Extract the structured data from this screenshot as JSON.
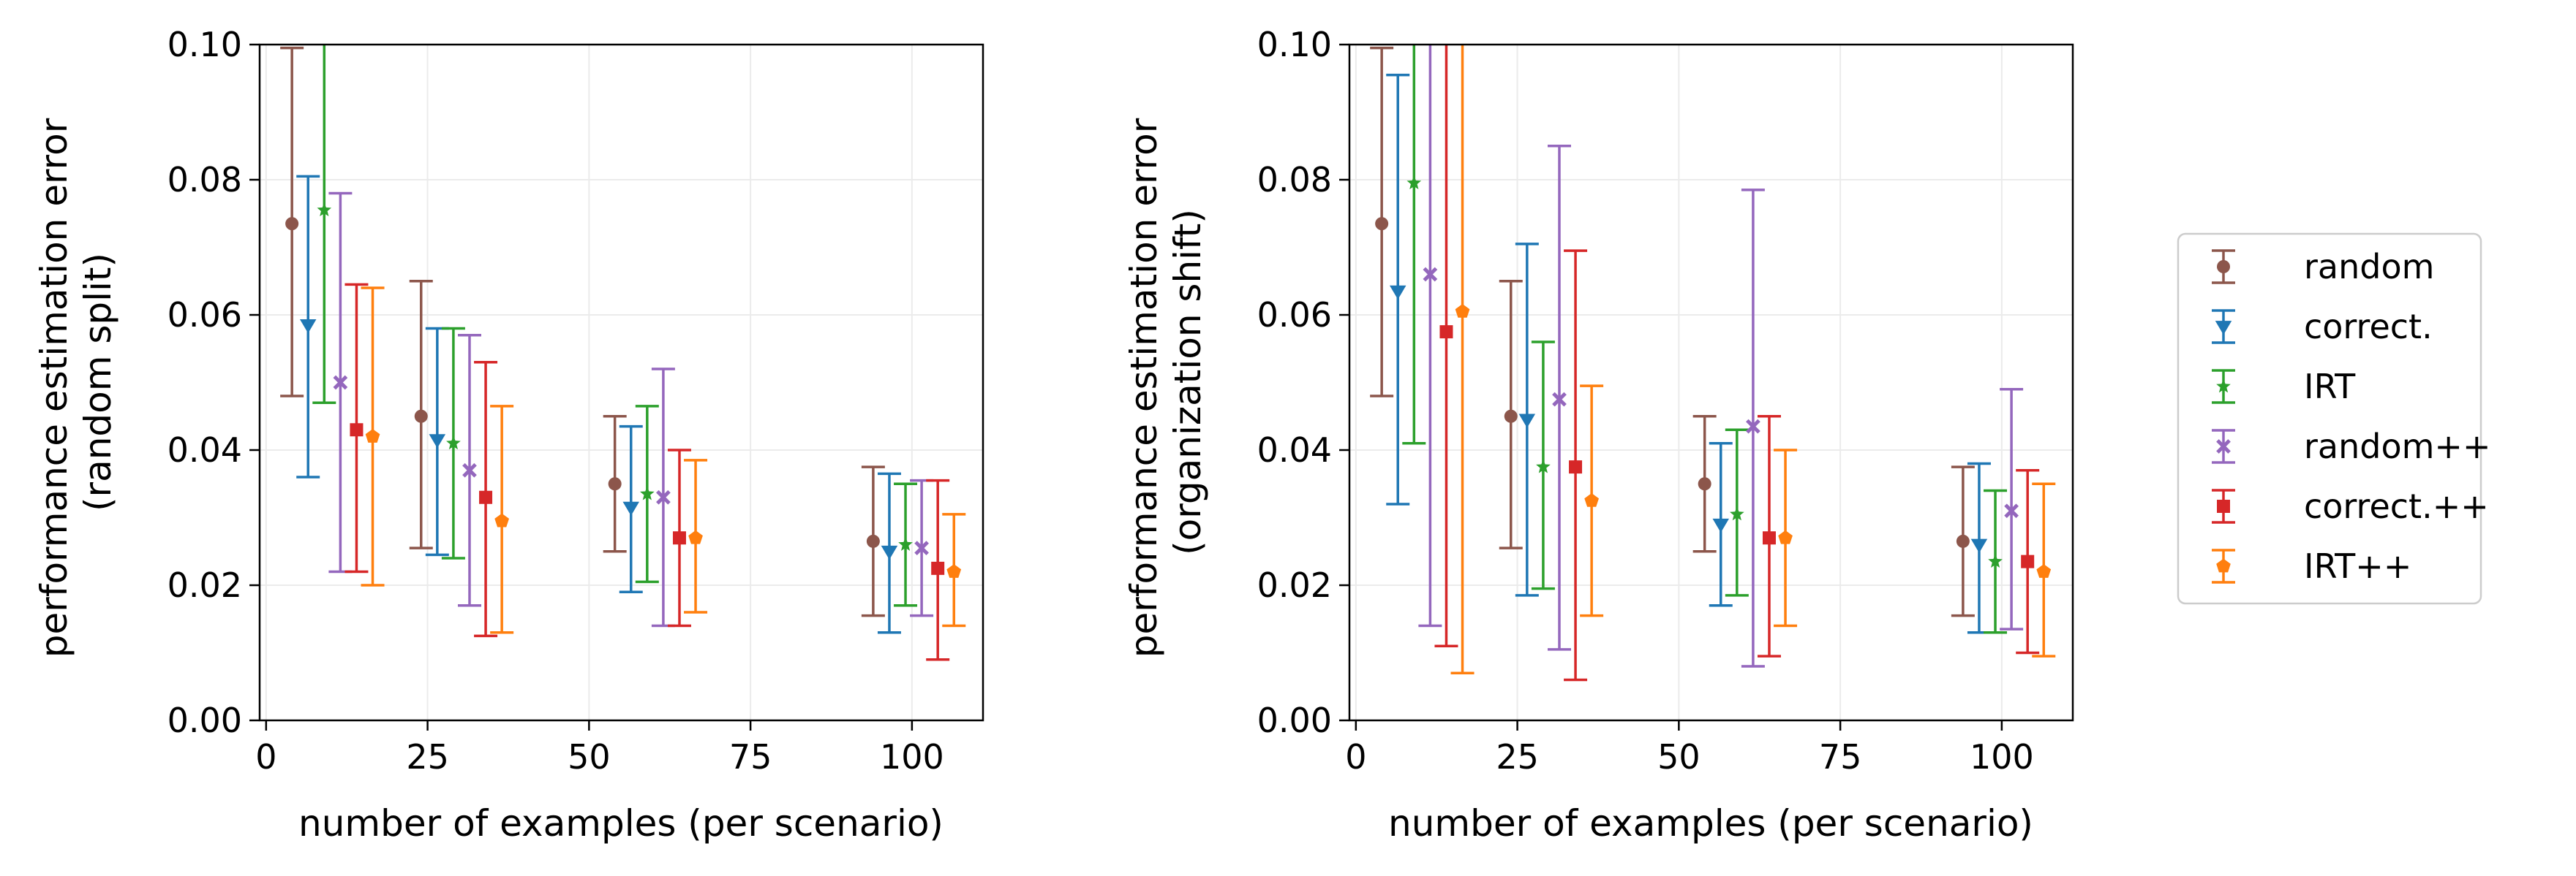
{
  "chart_data": [
    {
      "type": "errorbar",
      "panel": "left",
      "ylabel_lines": [
        "performance estimation error",
        "(random split)"
      ],
      "xlabel": "number of examples (per scenario)",
      "xlim": [
        -1,
        111
      ],
      "ylim": [
        0,
        0.1
      ],
      "xticks": [
        0,
        25,
        50,
        75,
        100
      ],
      "yticks": [
        0.0,
        0.02,
        0.04,
        0.06,
        0.08,
        0.1
      ],
      "ytick_labels": [
        "0.00",
        "0.02",
        "0.04",
        "0.06",
        "0.08",
        "0.10"
      ],
      "grid": true,
      "series": [
        {
          "name": "random",
          "color": "#8c564b",
          "marker": "circle",
          "points": [
            {
              "x": 4,
              "y": 0.0735,
              "lo": 0.048,
              "hi": 0.0995
            },
            {
              "x": 24,
              "y": 0.045,
              "lo": 0.0255,
              "hi": 0.065
            },
            {
              "x": 54,
              "y": 0.035,
              "lo": 0.025,
              "hi": 0.045
            },
            {
              "x": 94,
              "y": 0.0265,
              "lo": 0.0155,
              "hi": 0.0375
            }
          ]
        },
        {
          "name": "correct.",
          "color": "#1f77b4",
          "marker": "triangle-down",
          "points": [
            {
              "x": 6.5,
              "y": 0.0585,
              "lo": 0.036,
              "hi": 0.0805
            },
            {
              "x": 26.5,
              "y": 0.0415,
              "lo": 0.0245,
              "hi": 0.058
            },
            {
              "x": 56.5,
              "y": 0.0315,
              "lo": 0.019,
              "hi": 0.0435
            },
            {
              "x": 96.5,
              "y": 0.025,
              "lo": 0.013,
              "hi": 0.0365
            }
          ]
        },
        {
          "name": "IRT",
          "color": "#2ca02c",
          "marker": "star",
          "points": [
            {
              "x": 9,
              "y": 0.0755,
              "lo": 0.047,
              "hi": 0.1
            },
            {
              "x": 29,
              "y": 0.041,
              "lo": 0.024,
              "hi": 0.058
            },
            {
              "x": 59,
              "y": 0.0335,
              "lo": 0.0205,
              "hi": 0.0465
            },
            {
              "x": 99,
              "y": 0.026,
              "lo": 0.017,
              "hi": 0.035
            }
          ]
        },
        {
          "name": "random++",
          "color": "#9467bd",
          "marker": "x",
          "points": [
            {
              "x": 11.5,
              "y": 0.05,
              "lo": 0.022,
              "hi": 0.078
            },
            {
              "x": 31.5,
              "y": 0.037,
              "lo": 0.017,
              "hi": 0.057
            },
            {
              "x": 61.5,
              "y": 0.033,
              "lo": 0.014,
              "hi": 0.052
            },
            {
              "x": 101.5,
              "y": 0.0255,
              "lo": 0.0155,
              "hi": 0.0355
            }
          ]
        },
        {
          "name": "correct.++",
          "color": "#d62728",
          "marker": "square",
          "points": [
            {
              "x": 14,
              "y": 0.043,
              "lo": 0.022,
              "hi": 0.0645
            },
            {
              "x": 34,
              "y": 0.033,
              "lo": 0.0125,
              "hi": 0.053
            },
            {
              "x": 64,
              "y": 0.027,
              "lo": 0.014,
              "hi": 0.04
            },
            {
              "x": 104,
              "y": 0.0225,
              "lo": 0.009,
              "hi": 0.0355
            }
          ]
        },
        {
          "name": "IRT++",
          "color": "#ff7f0e",
          "marker": "pentagon",
          "points": [
            {
              "x": 16.5,
              "y": 0.042,
              "lo": 0.02,
              "hi": 0.064
            },
            {
              "x": 36.5,
              "y": 0.0295,
              "lo": 0.013,
              "hi": 0.0465
            },
            {
              "x": 66.5,
              "y": 0.027,
              "lo": 0.016,
              "hi": 0.0385
            },
            {
              "x": 106.5,
              "y": 0.022,
              "lo": 0.014,
              "hi": 0.0305
            }
          ]
        }
      ]
    },
    {
      "type": "errorbar",
      "panel": "right",
      "ylabel_lines": [
        "performance estimation error",
        "(organization shift)"
      ],
      "xlabel": "number of examples (per scenario)",
      "xlim": [
        -1,
        111
      ],
      "ylim": [
        0,
        0.1
      ],
      "xticks": [
        0,
        25,
        50,
        75,
        100
      ],
      "yticks": [
        0.0,
        0.02,
        0.04,
        0.06,
        0.08,
        0.1
      ],
      "ytick_labels": [
        "0.00",
        "0.02",
        "0.04",
        "0.06",
        "0.08",
        "0.10"
      ],
      "grid": true,
      "series": [
        {
          "name": "random",
          "color": "#8c564b",
          "marker": "circle",
          "points": [
            {
              "x": 4,
              "y": 0.0735,
              "lo": 0.048,
              "hi": 0.0995
            },
            {
              "x": 24,
              "y": 0.045,
              "lo": 0.0255,
              "hi": 0.065
            },
            {
              "x": 54,
              "y": 0.035,
              "lo": 0.025,
              "hi": 0.045
            },
            {
              "x": 94,
              "y": 0.0265,
              "lo": 0.0155,
              "hi": 0.0375
            }
          ]
        },
        {
          "name": "correct.",
          "color": "#1f77b4",
          "marker": "triangle-down",
          "points": [
            {
              "x": 6.5,
              "y": 0.0635,
              "lo": 0.032,
              "hi": 0.0955
            },
            {
              "x": 26.5,
              "y": 0.0445,
              "lo": 0.0185,
              "hi": 0.0705
            },
            {
              "x": 56.5,
              "y": 0.029,
              "lo": 0.017,
              "hi": 0.041
            },
            {
              "x": 96.5,
              "y": 0.026,
              "lo": 0.013,
              "hi": 0.038
            }
          ]
        },
        {
          "name": "IRT",
          "color": "#2ca02c",
          "marker": "star",
          "points": [
            {
              "x": 9,
              "y": 0.0795,
              "lo": 0.041,
              "hi": 0.1
            },
            {
              "x": 29,
              "y": 0.0375,
              "lo": 0.0195,
              "hi": 0.056
            },
            {
              "x": 59,
              "y": 0.0305,
              "lo": 0.0185,
              "hi": 0.043
            },
            {
              "x": 99,
              "y": 0.0235,
              "lo": 0.013,
              "hi": 0.034
            }
          ]
        },
        {
          "name": "random++",
          "color": "#9467bd",
          "marker": "x",
          "points": [
            {
              "x": 11.5,
              "y": 0.066,
              "lo": 0.014,
              "hi": 0.1
            },
            {
              "x": 31.5,
              "y": 0.0475,
              "lo": 0.0105,
              "hi": 0.085
            },
            {
              "x": 61.5,
              "y": 0.0435,
              "lo": 0.008,
              "hi": 0.0785
            },
            {
              "x": 101.5,
              "y": 0.031,
              "lo": 0.0135,
              "hi": 0.049
            }
          ]
        },
        {
          "name": "correct.++",
          "color": "#d62728",
          "marker": "square",
          "points": [
            {
              "x": 14,
              "y": 0.0575,
              "lo": 0.011,
              "hi": 0.1
            },
            {
              "x": 34,
              "y": 0.0375,
              "lo": 0.006,
              "hi": 0.0695
            },
            {
              "x": 64,
              "y": 0.027,
              "lo": 0.0095,
              "hi": 0.045
            },
            {
              "x": 104,
              "y": 0.0235,
              "lo": 0.01,
              "hi": 0.037
            }
          ]
        },
        {
          "name": "IRT++",
          "color": "#ff7f0e",
          "marker": "pentagon",
          "points": [
            {
              "x": 16.5,
              "y": 0.0605,
              "lo": 0.007,
              "hi": 0.1
            },
            {
              "x": 36.5,
              "y": 0.0325,
              "lo": 0.0155,
              "hi": 0.0495
            },
            {
              "x": 66.5,
              "y": 0.027,
              "lo": 0.014,
              "hi": 0.04
            },
            {
              "x": 106.5,
              "y": 0.022,
              "lo": 0.0095,
              "hi": 0.035
            }
          ]
        }
      ]
    }
  ],
  "legend": {
    "placement": "right",
    "entries": [
      "random",
      "correct.",
      "IRT",
      "random++",
      "correct.++",
      "IRT++"
    ]
  }
}
